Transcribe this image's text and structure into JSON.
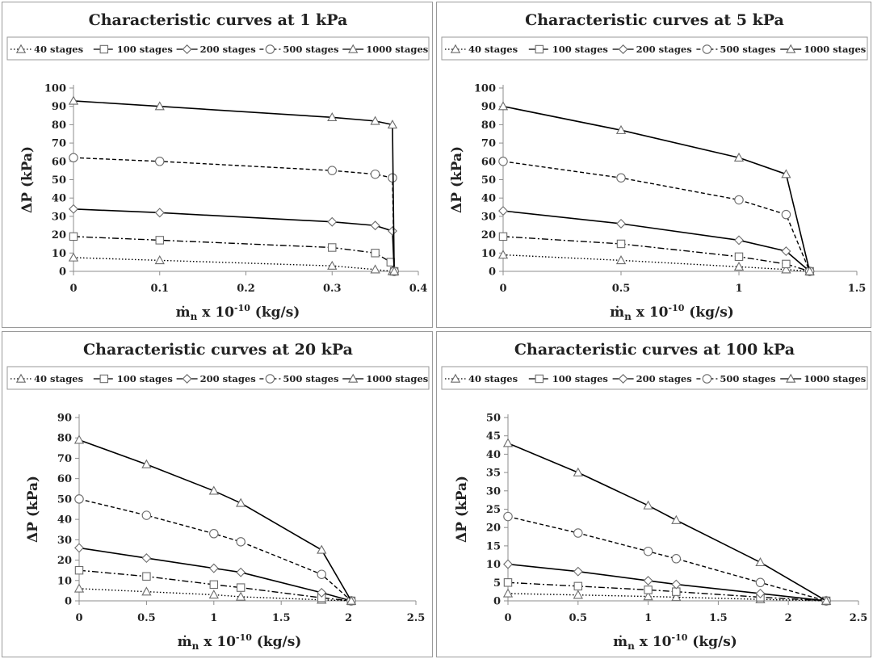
{
  "legend_labels": [
    "40 stages",
    "100 stages",
    "200 stages",
    "500 stages",
    "1000 stages"
  ],
  "style": {
    "line_color": "#000000",
    "marker_stroke": "#6b6b6b",
    "frame_color": "#9a9a9a",
    "series_dash": [
      "1.5,2.5",
      "8,3,2,3",
      "none",
      "5,3",
      "none"
    ],
    "series_marker": [
      "triangle",
      "square",
      "diamond",
      "circle",
      "triangle"
    ]
  },
  "chart_data": [
    {
      "type": "line",
      "title": "Characteristic curves at 1 kPa",
      "xlabel_main": "ṁ",
      "xlabel_sub": "n",
      "xlabel_mid": " x 10",
      "xlabel_exp": "-10",
      "xlabel_tail": " (kg/s)",
      "ylabel": "ΔP (kPa)",
      "xlim": [
        0,
        0.4
      ],
      "ylim": [
        0,
        100
      ],
      "xticks": [
        0,
        0.1,
        0.2,
        0.3,
        0.4
      ],
      "xtick_labels": [
        "0",
        "0.1",
        "0.2",
        "0.3",
        "0.4"
      ],
      "yticks": [
        0,
        10,
        20,
        30,
        40,
        50,
        60,
        70,
        80,
        90,
        100
      ],
      "ytick_labels": [
        "0",
        "10",
        "20",
        "30",
        "40",
        "50",
        "60",
        "70",
        "80",
        "90",
        "100"
      ],
      "grid": false,
      "legend_position": "top",
      "series": [
        {
          "name": "40 stages",
          "x": [
            0,
            0.1,
            0.3,
            0.35,
            0.37,
            0.372
          ],
          "y": [
            7.5,
            6,
            3,
            1,
            0,
            0
          ]
        },
        {
          "name": "100 stages",
          "x": [
            0,
            0.1,
            0.3,
            0.35,
            0.368,
            0.372
          ],
          "y": [
            19,
            17,
            13,
            10,
            5,
            0
          ]
        },
        {
          "name": "200 stages",
          "x": [
            0,
            0.1,
            0.3,
            0.35,
            0.37,
            0.372
          ],
          "y": [
            34,
            32,
            27,
            25,
            22,
            0
          ]
        },
        {
          "name": "500 stages",
          "x": [
            0,
            0.1,
            0.3,
            0.35,
            0.37,
            0.372
          ],
          "y": [
            62,
            60,
            55,
            53,
            51,
            0
          ]
        },
        {
          "name": "1000 stages",
          "x": [
            0,
            0.1,
            0.3,
            0.35,
            0.37,
            0.372
          ],
          "y": [
            93,
            90,
            84,
            82,
            80,
            0
          ]
        }
      ]
    },
    {
      "type": "line",
      "title": "Characteristic curves at 5 kPa",
      "xlabel_main": "ṁ",
      "xlabel_sub": "n",
      "xlabel_mid": " x 10",
      "xlabel_exp": "-10",
      "xlabel_tail": " (kg/s)",
      "ylabel": "ΔP (kPa)",
      "xlim": [
        0,
        1.5
      ],
      "ylim": [
        0,
        100
      ],
      "xticks": [
        0,
        0.5,
        1,
        1.5
      ],
      "xtick_labels": [
        "0",
        "0.5",
        "1",
        "1.5"
      ],
      "yticks": [
        0,
        10,
        20,
        30,
        40,
        50,
        60,
        70,
        80,
        90,
        100
      ],
      "ytick_labels": [
        "0",
        "10",
        "20",
        "30",
        "40",
        "50",
        "60",
        "70",
        "80",
        "90",
        "100"
      ],
      "grid": false,
      "legend_position": "top",
      "series": [
        {
          "name": "40 stages",
          "x": [
            0,
            0.5,
            1,
            1.2,
            1.3
          ],
          "y": [
            9,
            6,
            2.5,
            1,
            0
          ]
        },
        {
          "name": "100 stages",
          "x": [
            0,
            0.5,
            1,
            1.2,
            1.3
          ],
          "y": [
            19,
            15,
            8,
            4,
            0
          ]
        },
        {
          "name": "200 stages",
          "x": [
            0,
            0.5,
            1,
            1.2,
            1.3
          ],
          "y": [
            33,
            26,
            17,
            11,
            0
          ]
        },
        {
          "name": "500 stages",
          "x": [
            0,
            0.5,
            1,
            1.2,
            1.3
          ],
          "y": [
            60,
            51,
            39,
            31,
            0
          ]
        },
        {
          "name": "1000 stages",
          "x": [
            0,
            0.5,
            1,
            1.2,
            1.3
          ],
          "y": [
            90,
            77,
            62,
            53,
            0
          ]
        }
      ]
    },
    {
      "type": "line",
      "title": "Characteristic curves at 20 kPa",
      "xlabel_main": "ṁ",
      "xlabel_sub": "n",
      "xlabel_mid": " x 10",
      "xlabel_exp": "-10",
      "xlabel_tail": " (kg/s)",
      "ylabel": "ΔP (kPa)",
      "xlim": [
        0,
        2.5
      ],
      "ylim": [
        0,
        90
      ],
      "xticks": [
        0,
        0.5,
        1,
        1.5,
        2,
        2.5
      ],
      "xtick_labels": [
        "0",
        "0.5",
        "1",
        "1.5",
        "2",
        "2.5"
      ],
      "yticks": [
        0,
        10,
        20,
        30,
        40,
        50,
        60,
        70,
        80,
        90
      ],
      "ytick_labels": [
        "0",
        "10",
        "20",
        "30",
        "40",
        "50",
        "60",
        "70",
        "80",
        "90"
      ],
      "grid": false,
      "legend_position": "top",
      "series": [
        {
          "name": "40 stages",
          "x": [
            0,
            0.5,
            1,
            1.2,
            1.8,
            2.02
          ],
          "y": [
            6,
            4.5,
            3,
            2,
            0.5,
            0
          ]
        },
        {
          "name": "100 stages",
          "x": [
            0,
            0.5,
            1,
            1.2,
            1.8,
            2.02
          ],
          "y": [
            15,
            12,
            8,
            6.5,
            1.5,
            0
          ]
        },
        {
          "name": "200 stages",
          "x": [
            0,
            0.5,
            1,
            1.2,
            1.8,
            2.02
          ],
          "y": [
            26,
            21,
            16,
            14,
            4,
            0
          ]
        },
        {
          "name": "500 stages",
          "x": [
            0,
            0.5,
            1,
            1.2,
            1.8,
            2.02
          ],
          "y": [
            50,
            42,
            33,
            29,
            13,
            0
          ]
        },
        {
          "name": "1000 stages",
          "x": [
            0,
            0.5,
            1,
            1.2,
            1.8,
            2.02
          ],
          "y": [
            79,
            67,
            54,
            48,
            25,
            0
          ]
        }
      ]
    },
    {
      "type": "line",
      "title": "Characteristic curves at 100 kPa",
      "xlabel_main": "ṁ",
      "xlabel_sub": "n",
      "xlabel_mid": " x 10",
      "xlabel_exp": "-10",
      "xlabel_tail": " (kg/s)",
      "ylabel": "ΔP (kPa)",
      "xlim": [
        0,
        2.5
      ],
      "ylim": [
        0,
        50
      ],
      "xticks": [
        0,
        0.5,
        1,
        1.5,
        2,
        2.5
      ],
      "xtick_labels": [
        "0",
        "0.5",
        "1",
        "1.5",
        "2",
        "2.5"
      ],
      "yticks": [
        0,
        5,
        10,
        15,
        20,
        25,
        30,
        35,
        40,
        45,
        50
      ],
      "ytick_labels": [
        "0",
        "5",
        "10",
        "15",
        "20",
        "25",
        "30",
        "35",
        "40",
        "45",
        "50"
      ],
      "grid": false,
      "legend_position": "top",
      "series": [
        {
          "name": "40 stages",
          "x": [
            0,
            0.5,
            1,
            1.2,
            1.8,
            2.27
          ],
          "y": [
            2,
            1.6,
            1.2,
            1,
            0.4,
            0
          ]
        },
        {
          "name": "100 stages",
          "x": [
            0,
            0.5,
            1,
            1.2,
            1.8,
            2.27
          ],
          "y": [
            5,
            4,
            3,
            2.5,
            1,
            0
          ]
        },
        {
          "name": "200 stages",
          "x": [
            0,
            0.5,
            1,
            1.2,
            1.8,
            2.27
          ],
          "y": [
            10,
            8,
            5.5,
            4.5,
            2,
            0
          ]
        },
        {
          "name": "500 stages",
          "x": [
            0,
            0.5,
            1,
            1.2,
            1.8,
            2.27
          ],
          "y": [
            23,
            18.5,
            13.5,
            11.5,
            5,
            0
          ]
        },
        {
          "name": "1000 stages",
          "x": [
            0,
            0.5,
            1,
            1.2,
            1.8,
            2.27
          ],
          "y": [
            43,
            35,
            26,
            22,
            10.5,
            0
          ]
        }
      ]
    }
  ]
}
